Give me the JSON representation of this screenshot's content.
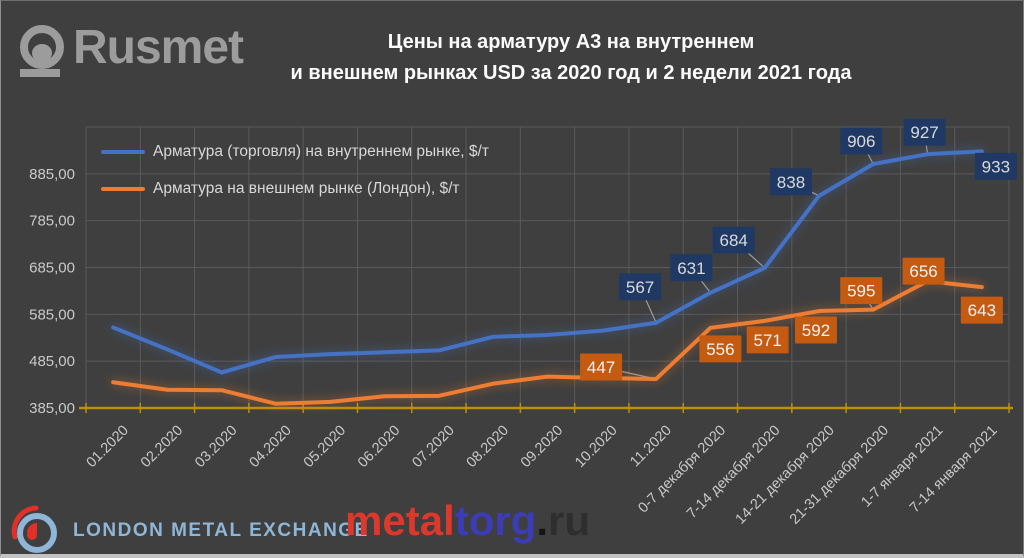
{
  "header": {
    "logo_text": "Rusmet",
    "title_line1": "Цены на арматуру А3 на внутреннем",
    "title_line2": "и внешнем рынках USD за 2020 год и 2 недели 2021 года"
  },
  "legend": [
    {
      "label": "Арматура (торговля) на внутреннем рынке, $/т",
      "color": "#4472C4"
    },
    {
      "label": "Арматура на внешнем рынке (Лондон), $/т",
      "color": "#ED7D31"
    }
  ],
  "chart_data": {
    "type": "line",
    "title": "Цены на арматуру А3 на внутреннем и внешнем рынках USD за 2020 год и 2 недели 2021 года",
    "categories": [
      "01.2020",
      "02.2020",
      "03.2020",
      "04.2020",
      "05.2020",
      "06.2020",
      "07.2020",
      "08.2020",
      "09.2020",
      "10.2020",
      "11.2020",
      "0-7 декабря 2020",
      "7-14 декабря 2020",
      "14-21 декабря 2020",
      "21-31 декабря 2020",
      "1-7 января 2021",
      "7-14 января 2021"
    ],
    "y_ticks": [
      "385,00",
      "485,00",
      "585,00",
      "685,00",
      "785,00",
      "885,00"
    ],
    "ylim": [
      385,
      985
    ],
    "grid": true,
    "legend_position": "top-left",
    "axis_color": "#BF9000",
    "grid_color": "#5A5A5A",
    "tick_text_color": "#C9C9C9",
    "leader_color": "#9E9E9E",
    "series": [
      {
        "name": "Арматура (торговля) на внутреннем рынке, $/т",
        "color": "#4472C4",
        "label_box_color": "#1F3864",
        "label_text_color": "#D9D9D9",
        "values": [
          557,
          510,
          461,
          494,
          500,
          504,
          508,
          537,
          541,
          550,
          567,
          631,
          684,
          838,
          906,
          927,
          933
        ],
        "data_labels": [
          {
            "index": 10,
            "value": 567,
            "dx": -16,
            "dy": -36,
            "leader": true
          },
          {
            "index": 11,
            "value": 631,
            "dx": -19,
            "dy": -25,
            "leader": true
          },
          {
            "index": 12,
            "value": 684,
            "dx": -31,
            "dy": -28,
            "leader": true
          },
          {
            "index": 13,
            "value": 838,
            "dx": -28,
            "dy": -14,
            "leader": true
          },
          {
            "index": 14,
            "value": 906,
            "dx": -12,
            "dy": -23,
            "leader": true
          },
          {
            "index": 15,
            "value": 927,
            "dx": -3,
            "dy": -22,
            "leader": true
          },
          {
            "index": 16,
            "value": 933,
            "dx": 14,
            "dy": 15,
            "leader": false
          }
        ]
      },
      {
        "name": "Арматура на внешнем рынке (Лондон), $/т",
        "color": "#ED7D31",
        "label_box_color": "#C55A11",
        "label_text_color": "#F2F2F2",
        "values": [
          440,
          424,
          423,
          394,
          398,
          410,
          411,
          437,
          452,
          449,
          447,
          556,
          571,
          592,
          595,
          656,
          643
        ],
        "data_labels": [
          {
            "index": 10,
            "value": 447,
            "dx": -55,
            "dy": -12,
            "leader": true
          },
          {
            "index": 11,
            "value": 556,
            "dx": 10,
            "dy": 21,
            "leader": false
          },
          {
            "index": 12,
            "value": 571,
            "dx": 3,
            "dy": 19,
            "leader": false
          },
          {
            "index": 13,
            "value": 592,
            "dx": -3,
            "dy": 19,
            "leader": false
          },
          {
            "index": 14,
            "value": 595,
            "dx": -12,
            "dy": -19,
            "leader": true
          },
          {
            "index": 15,
            "value": 656,
            "dx": -4,
            "dy": -10,
            "leader": false
          },
          {
            "index": 16,
            "value": 643,
            "dx": 0,
            "dy": 23,
            "leader": false
          }
        ]
      }
    ]
  },
  "footer": {
    "lme_text": "LONDON METAL EXCHANGE",
    "metaltorg_part1": "metal",
    "metaltorg_part2": "torg",
    "metaltorg_part3": ".",
    "metaltorg_part4": "ru"
  }
}
